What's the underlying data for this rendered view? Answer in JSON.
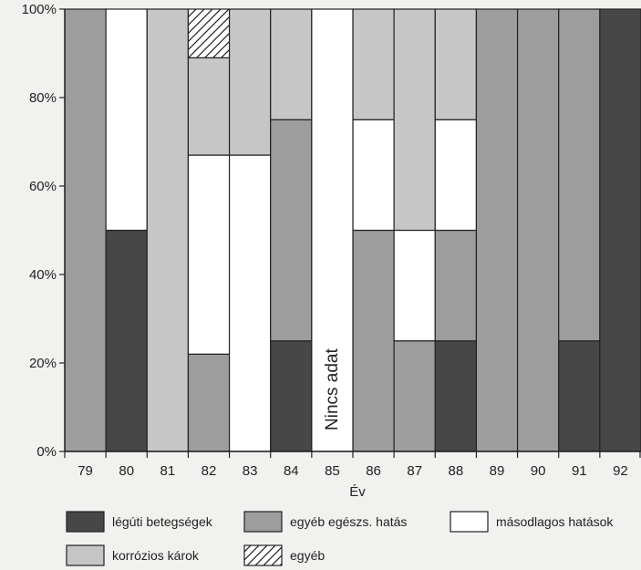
{
  "chart_data": {
    "type": "bar",
    "stacked": true,
    "normalized": true,
    "title": "",
    "xlabel": "Év",
    "ylabel": "",
    "ylim": [
      0,
      100
    ],
    "yticks": [
      "0%",
      "20%",
      "40%",
      "60%",
      "80%",
      "100%"
    ],
    "categories": [
      "79",
      "80",
      "81",
      "82",
      "83",
      "84",
      "85",
      "86",
      "87",
      "88",
      "89",
      "90",
      "91",
      "92"
    ],
    "series": [
      {
        "name": "légúti betegségek",
        "color": "#474747",
        "pattern": "solid",
        "values": [
          0,
          50,
          0,
          0,
          0,
          25,
          0,
          0,
          0,
          25,
          0,
          0,
          25,
          100
        ]
      },
      {
        "name": "egyéb egészs. hatás",
        "color": "#9d9d9d",
        "pattern": "solid",
        "values": [
          100,
          0,
          0,
          22,
          0,
          50,
          0,
          50,
          25,
          25,
          100,
          100,
          75,
          0
        ]
      },
      {
        "name": "másodlagos hatások",
        "color": "#ffffff",
        "pattern": "solid",
        "values": [
          0,
          50,
          0,
          45,
          67,
          0,
          0,
          25,
          25,
          25,
          0,
          0,
          0,
          0
        ]
      },
      {
        "name": "korrózios károk",
        "color": "#c6c6c6",
        "pattern": "solid",
        "values": [
          0,
          0,
          100,
          22,
          33,
          25,
          0,
          25,
          50,
          25,
          0,
          0,
          0,
          0
        ]
      },
      {
        "name": "egyéb",
        "color": "#ffffff",
        "pattern": "hatch",
        "values": [
          0,
          0,
          0,
          11,
          0,
          0,
          0,
          0,
          0,
          0,
          0,
          0,
          0,
          0
        ]
      }
    ],
    "annotations": [
      {
        "category": "85",
        "text": "Nincs adat"
      }
    ],
    "legend_position": "bottom",
    "grid": false
  }
}
